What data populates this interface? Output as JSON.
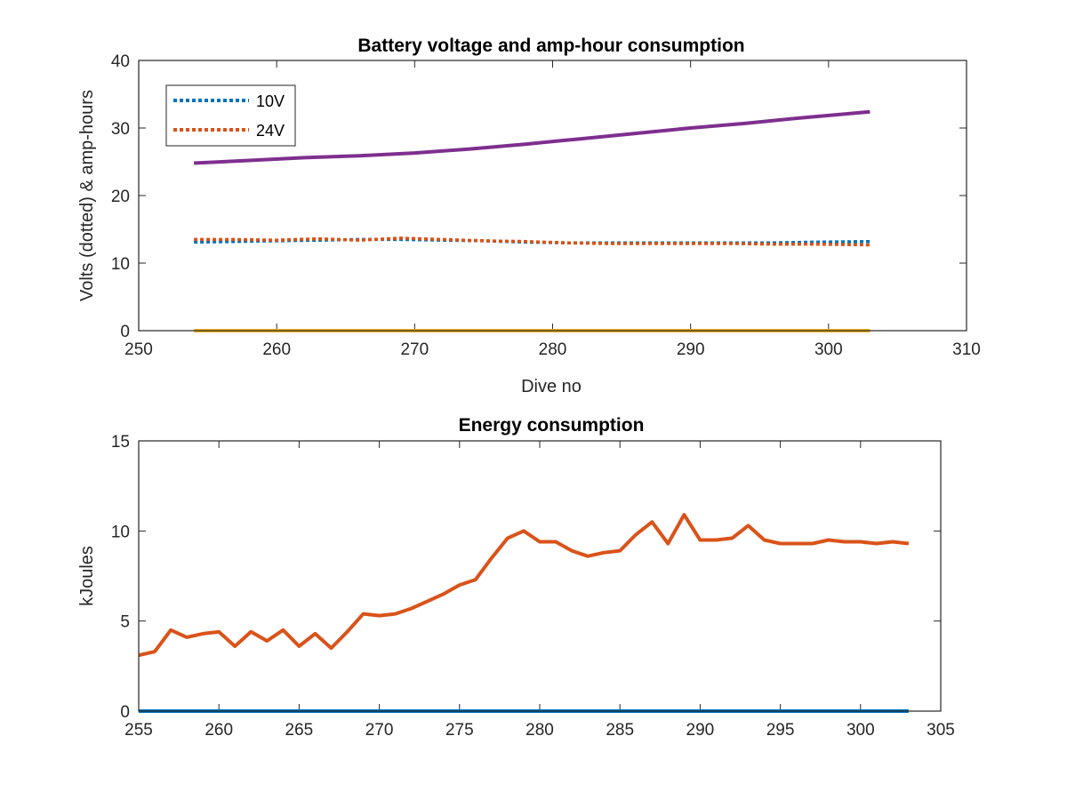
{
  "colors": {
    "blue": "#0072BD",
    "orange": "#D95319",
    "yellow": "#EDB120",
    "purple": "#7E2F8E",
    "axis": "#262626"
  },
  "chart_data": [
    {
      "type": "line",
      "title": "Battery voltage and amp-hour consumption",
      "xlabel": "Dive no",
      "ylabel": "Volts (dotted) & amp-hours",
      "xlim": [
        250,
        310
      ],
      "ylim": [
        0,
        40
      ],
      "xticks": [
        "250",
        "260",
        "270",
        "280",
        "290",
        "300",
        "310"
      ],
      "yticks": [
        "0",
        "10",
        "20",
        "30",
        "40"
      ],
      "grid": false,
      "legend": {
        "placement": "top-left",
        "entries": [
          "10V",
          "24V"
        ]
      },
      "series": [
        {
          "name": "10V",
          "style": "dotted",
          "color": "blue",
          "x": [
            254,
            257,
            260,
            263,
            266,
            269,
            272,
            275,
            278,
            281,
            284,
            287,
            290,
            293,
            296,
            299,
            303
          ],
          "y": [
            13.1,
            13.2,
            13.3,
            13.4,
            13.5,
            13.5,
            13.4,
            13.3,
            13.1,
            13.0,
            13.0,
            13.0,
            13.0,
            13.0,
            13.0,
            13.1,
            13.2
          ]
        },
        {
          "name": "24V",
          "style": "dotted",
          "color": "orange",
          "x": [
            254,
            257,
            260,
            263,
            266,
            269,
            272,
            275,
            278,
            281,
            284,
            287,
            290,
            293,
            296,
            299,
            303
          ],
          "y": [
            13.5,
            13.5,
            13.4,
            13.6,
            13.4,
            13.7,
            13.5,
            13.3,
            13.2,
            13.0,
            12.9,
            12.9,
            12.9,
            12.9,
            12.8,
            12.8,
            12.7
          ]
        },
        {
          "style": "solid",
          "color": "yellow",
          "x": [
            254,
            303
          ],
          "y": [
            0,
            0
          ]
        },
        {
          "style": "solid",
          "color": "purple",
          "x": [
            254,
            258,
            262,
            266,
            270,
            274,
            278,
            282,
            286,
            290,
            294,
            298,
            303
          ],
          "y": [
            24.8,
            25.2,
            25.6,
            25.9,
            26.3,
            26.9,
            27.6,
            28.4,
            29.2,
            30.0,
            30.7,
            31.5,
            32.4
          ]
        }
      ]
    },
    {
      "type": "line",
      "title": "Energy consumption",
      "xlabel": "",
      "ylabel": "kJoules",
      "xlim": [
        255,
        305
      ],
      "ylim": [
        0,
        15
      ],
      "xticks": [
        "255",
        "260",
        "265",
        "270",
        "275",
        "280",
        "285",
        "290",
        "295",
        "300",
        "305"
      ],
      "yticks": [
        "0",
        "5",
        "10",
        "15"
      ],
      "grid": false,
      "series": [
        {
          "style": "solid",
          "color": "orange",
          "x": [
            255,
            256,
            257,
            258,
            259,
            260,
            261,
            262,
            263,
            264,
            265,
            266,
            267,
            268,
            269,
            270,
            271,
            272,
            273,
            274,
            275,
            276,
            277,
            278,
            279,
            280,
            281,
            282,
            283,
            284,
            285,
            286,
            287,
            288,
            289,
            290,
            291,
            292,
            293,
            294,
            295,
            296,
            297,
            298,
            299,
            300,
            301,
            302,
            303
          ],
          "y": [
            3.1,
            3.3,
            4.5,
            4.1,
            4.3,
            4.4,
            3.6,
            4.4,
            3.9,
            4.5,
            3.6,
            4.3,
            3.5,
            4.4,
            5.4,
            5.3,
            5.4,
            5.7,
            6.1,
            6.5,
            7.0,
            7.3,
            8.5,
            9.6,
            10.0,
            9.4,
            9.4,
            8.9,
            8.6,
            8.8,
            8.9,
            9.8,
            10.5,
            9.3,
            10.9,
            9.5,
            9.5,
            9.6,
            10.3,
            9.5,
            9.3,
            9.3,
            9.3,
            9.5,
            9.4,
            9.4,
            9.3,
            9.4,
            9.3
          ]
        },
        {
          "style": "solid",
          "color": "blue",
          "x": [
            255,
            303
          ],
          "y": [
            0,
            0
          ]
        }
      ]
    }
  ]
}
